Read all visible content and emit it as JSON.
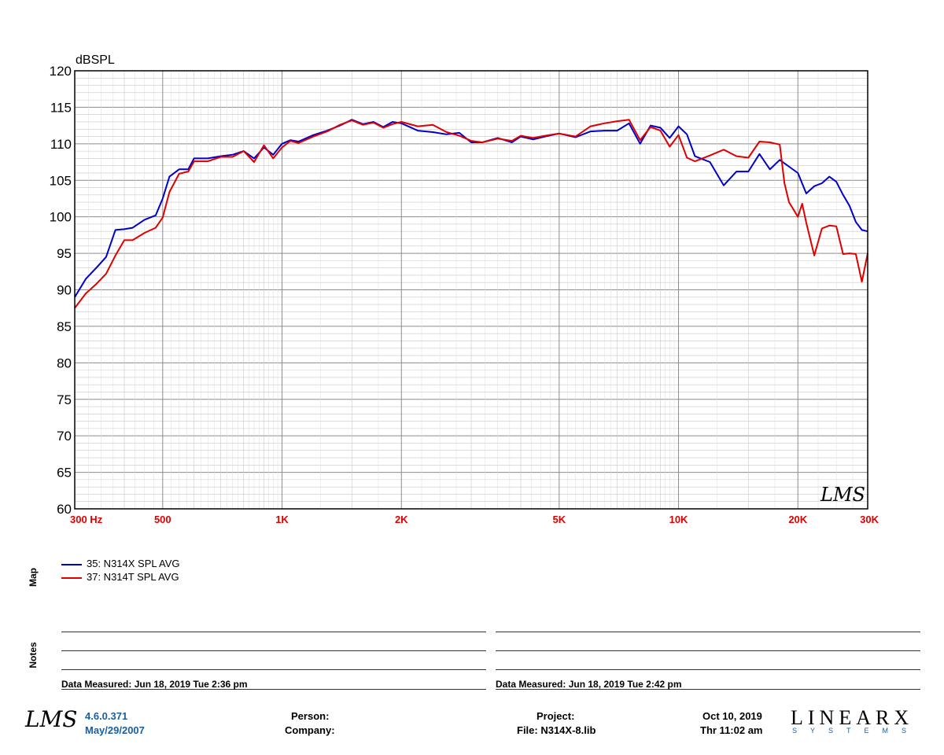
{
  "chart_data": {
    "type": "line",
    "ylabel": "dBSPL",
    "ylim": [
      60,
      120
    ],
    "yticks": [
      60,
      65,
      70,
      75,
      80,
      85,
      90,
      95,
      100,
      105,
      110,
      115,
      120
    ],
    "xscale": "log",
    "xlim": [
      300,
      30000
    ],
    "xtick_labels": [
      {
        "f": 300,
        "label": "300  Hz"
      },
      {
        "f": 500,
        "label": "500"
      },
      {
        "f": 1000,
        "label": "1K"
      },
      {
        "f": 2000,
        "label": "2K"
      },
      {
        "f": 5000,
        "label": "5K"
      },
      {
        "f": 10000,
        "label": "10K"
      },
      {
        "f": 20000,
        "label": "20K"
      },
      {
        "f": 30000,
        "label": "30K"
      }
    ],
    "grid": true,
    "watermark": "LMS",
    "series": [
      {
        "name": "35: N314X SPL AVG",
        "color": "#0000cc",
        "x": [
          300,
          320,
          340,
          360,
          380,
          400,
          420,
          450,
          480,
          500,
          520,
          550,
          580,
          600,
          650,
          700,
          750,
          800,
          850,
          900,
          950,
          1000,
          1050,
          1100,
          1200,
          1300,
          1400,
          1500,
          1600,
          1700,
          1800,
          1900,
          2000,
          2200,
          2400,
          2600,
          2800,
          3000,
          3200,
          3500,
          3800,
          4000,
          4300,
          4600,
          5000,
          5500,
          6000,
          6500,
          7000,
          7500,
          8000,
          8500,
          9000,
          9500,
          10000,
          10500,
          11000,
          12000,
          13000,
          14000,
          15000,
          16000,
          17000,
          18000,
          20000,
          21000,
          22000,
          23000,
          24000,
          25000,
          26000,
          27000,
          28000,
          29000,
          30000
        ],
        "y": [
          89,
          91.5,
          93,
          94.5,
          98.2,
          98.3,
          98.5,
          99.6,
          100.2,
          102.5,
          105.5,
          106.5,
          106.5,
          108,
          108,
          108.3,
          108.5,
          109,
          108,
          109.5,
          108.5,
          110,
          110.5,
          110.3,
          111.2,
          111.8,
          112.5,
          113.3,
          112.7,
          113,
          112.3,
          113,
          112.8,
          111.8,
          111.6,
          111.3,
          111.5,
          110.2,
          110.2,
          110.8,
          110.2,
          111,
          110.6,
          111,
          111.4,
          110.9,
          111.7,
          111.8,
          111.8,
          112.8,
          110,
          112.5,
          112.2,
          110.8,
          112.4,
          111.3,
          108.3,
          107.5,
          104.3,
          106.2,
          106.2,
          108.6,
          106.5,
          107.8,
          106,
          103.2,
          104.2,
          104.6,
          105.5,
          104.8,
          103,
          101.5,
          99.3,
          98.2,
          98
        ]
      },
      {
        "name": "37: N314T SPL AVG",
        "color": "#e00000",
        "x": [
          300,
          320,
          340,
          360,
          380,
          400,
          420,
          450,
          480,
          500,
          520,
          550,
          580,
          600,
          650,
          700,
          750,
          800,
          850,
          900,
          950,
          1000,
          1050,
          1100,
          1200,
          1300,
          1400,
          1500,
          1600,
          1700,
          1800,
          1900,
          2000,
          2200,
          2400,
          2600,
          2800,
          3000,
          3200,
          3500,
          3800,
          4000,
          4300,
          4600,
          5000,
          5500,
          6000,
          6500,
          7000,
          7500,
          8000,
          8500,
          9000,
          9500,
          10000,
          10500,
          11000,
          12000,
          13000,
          14000,
          15000,
          16000,
          17000,
          18000,
          18500,
          19000,
          20000,
          20500,
          21000,
          22000,
          23000,
          24000,
          25000,
          26000,
          27000,
          28000,
          29000,
          30000
        ],
        "y": [
          87.5,
          89.5,
          90.8,
          92.2,
          94.7,
          96.8,
          96.8,
          97.8,
          98.5,
          99.9,
          103.4,
          105.9,
          106.2,
          107.6,
          107.6,
          108.2,
          108.2,
          109,
          107.5,
          109.8,
          108,
          109.5,
          110.4,
          110.1,
          111,
          111.7,
          112.6,
          113.2,
          112.6,
          112.9,
          112.2,
          112.7,
          113,
          112.4,
          112.6,
          111.6,
          111.1,
          110.4,
          110.2,
          110.7,
          110.4,
          111.1,
          110.8,
          111.1,
          111.4,
          111,
          112.4,
          112.8,
          113.1,
          113.3,
          110.5,
          112.3,
          111.8,
          109.6,
          111.2,
          108.1,
          107.6,
          108.4,
          109.2,
          108.3,
          108.1,
          110.3,
          110.2,
          109.9,
          104.6,
          102,
          100,
          101.8,
          99.2,
          94.7,
          98.4,
          98.8,
          98.7,
          94.9,
          95,
          94.9,
          91.1,
          95
        ]
      }
    ]
  },
  "legend": {
    "title": "Map",
    "items": [
      {
        "label": "35: N314X SPL AVG",
        "color": "#0000cc"
      },
      {
        "label": "37: N314T SPL AVG",
        "color": "#e00000"
      }
    ]
  },
  "notes": {
    "title": "Notes",
    "left_measured": "Data Measured: Jun 18, 2019  Tue  2:36 pm",
    "right_measured": "Data Measured: Jun 18, 2019  Tue  2:42 pm"
  },
  "footer": {
    "logo": "LMS",
    "version": "4.6.0.371",
    "build_date": "May/29/2007",
    "person_label": "Person:",
    "company_label": "Company:",
    "project_label": "Project:",
    "file_label": "File: N314X-8.lib",
    "date": "Oct 10, 2019",
    "time": "Thr 11:02 am",
    "brand": "LINEARX",
    "brand_sub": "SYSTEMS"
  }
}
